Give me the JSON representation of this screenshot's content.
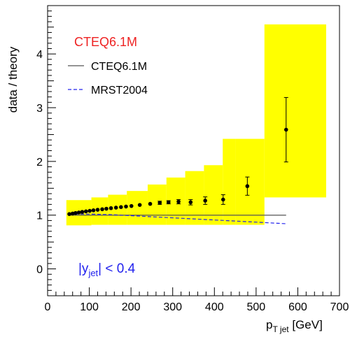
{
  "chart_data": {
    "type": "scatter",
    "title": "",
    "xlabel": "p",
    "xlabel_sub": "T jet",
    "xlabel_unit": "[GeV]",
    "ylabel": "data / theory",
    "xlim": [
      0,
      700
    ],
    "ylim": [
      -0.5,
      4.9
    ],
    "x_ticks": [
      0,
      100,
      200,
      300,
      400,
      500,
      600,
      700
    ],
    "y_ticks": [
      0,
      1,
      2,
      3,
      4
    ],
    "grid": false,
    "legend": {
      "placement": "top-left",
      "header": "CTEQ6.1M",
      "entries": [
        {
          "label": "CTEQ6.1M",
          "style": "solid",
          "color": "#555555"
        },
        {
          "label": "MRST2004",
          "style": "dashed",
          "color": "#2222ee"
        }
      ]
    },
    "annotation": {
      "text_main": "|y",
      "text_sub": "jet",
      "text_tail": "| < 0.4"
    },
    "series": [
      {
        "name": "data",
        "kind": "points",
        "x": [
          52,
          60,
          67,
          75,
          83,
          92,
          101,
          110,
          120,
          131,
          141,
          152,
          164,
          176,
          188,
          201,
          221,
          246,
          269,
          290,
          314,
          343,
          378,
          421,
          479,
          572
        ],
        "y": [
          1.02,
          1.03,
          1.04,
          1.05,
          1.06,
          1.07,
          1.08,
          1.09,
          1.1,
          1.11,
          1.12,
          1.13,
          1.14,
          1.15,
          1.16,
          1.17,
          1.19,
          1.21,
          1.23,
          1.24,
          1.25,
          1.24,
          1.27,
          1.29,
          1.54,
          2.59
        ],
        "err": [
          0.01,
          0.01,
          0.01,
          0.01,
          0.01,
          0.01,
          0.01,
          0.01,
          0.01,
          0.01,
          0.01,
          0.01,
          0.01,
          0.01,
          0.01,
          0.01,
          0.02,
          0.02,
          0.03,
          0.03,
          0.04,
          0.05,
          0.07,
          0.09,
          0.17,
          0.6
        ]
      },
      {
        "name": "CTEQ6.1M",
        "kind": "line",
        "x": [
          52,
          572
        ],
        "y": [
          1.0,
          1.0
        ]
      },
      {
        "name": "MRST2004",
        "kind": "line",
        "x": [
          52,
          100,
          150,
          200,
          250,
          300,
          350,
          400,
          450,
          500,
          572
        ],
        "y": [
          1.02,
          1.02,
          1.01,
          0.99,
          0.97,
          0.95,
          0.93,
          0.91,
          0.89,
          0.87,
          0.84
        ]
      }
    ],
    "uncertainty_band": {
      "color": "#ffff00",
      "bins": [
        {
          "x0": 45,
          "x1": 105,
          "lo": 0.81,
          "hi": 1.28
        },
        {
          "x0": 105,
          "x1": 145,
          "lo": 0.82,
          "hi": 1.33
        },
        {
          "x0": 145,
          "x1": 190,
          "lo": 0.82,
          "hi": 1.38
        },
        {
          "x0": 190,
          "x1": 240,
          "lo": 0.82,
          "hi": 1.45
        },
        {
          "x0": 240,
          "x1": 285,
          "lo": 0.82,
          "hi": 1.57
        },
        {
          "x0": 285,
          "x1": 330,
          "lo": 0.82,
          "hi": 1.7
        },
        {
          "x0": 330,
          "x1": 375,
          "lo": 0.82,
          "hi": 1.82
        },
        {
          "x0": 375,
          "x1": 420,
          "lo": 0.82,
          "hi": 1.93
        },
        {
          "x0": 420,
          "x1": 450,
          "lo": 0.82,
          "hi": 2.42
        },
        {
          "x0": 450,
          "x1": 520,
          "lo": 0.82,
          "hi": 2.42
        },
        {
          "x0": 520,
          "x1": 668,
          "lo": 1.33,
          "hi": 4.55
        }
      ]
    },
    "colors": {
      "header_text": "#ee2222",
      "annotation_text": "#2222ee",
      "points": "#000000",
      "axis": "#000000"
    }
  }
}
